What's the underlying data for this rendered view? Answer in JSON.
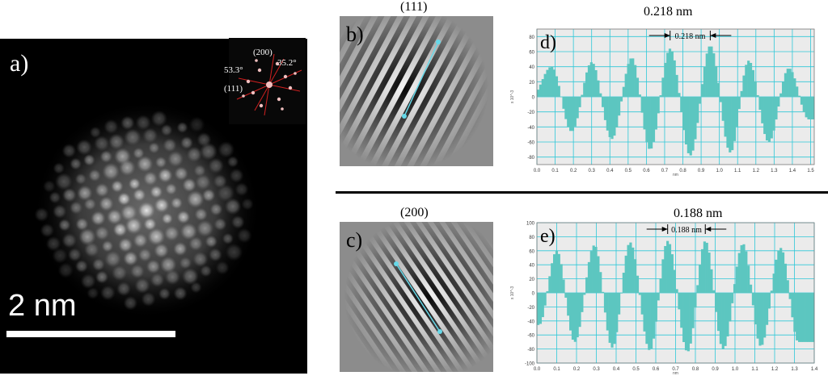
{
  "panel_a": {
    "letter": "a)",
    "scale_bar_label": "2 nm",
    "fft_inset": {
      "label_200": "(200)",
      "label_111": "(111)",
      "angle_left": "53.3°",
      "angle_right": "35.2°"
    }
  },
  "panel_b": {
    "letter": "b)",
    "header": "(111)"
  },
  "panel_c": {
    "letter": "c)",
    "header": "(200)"
  },
  "panel_d": {
    "letter": "d)",
    "header": "0.218 nm",
    "marker_label": "0.218 nm"
  },
  "panel_e": {
    "letter": "e)",
    "header": "0.188 nm",
    "marker_label": "0.188 nm"
  },
  "colors": {
    "profile_fill": "#5cc6c0",
    "grid": "#2ec8d8",
    "plot_bg": "#ebebeb",
    "line_overlay": "#66d8e8"
  },
  "chart_data": [
    {
      "type": "bar",
      "name": "panel-d-line-profile",
      "xlabel": "nm",
      "ylabel": "x 10^-3",
      "ylim": [
        -90,
        90
      ],
      "xlim": [
        0.0,
        1.52
      ],
      "yticks": [
        -80,
        -60,
        -40,
        -20,
        0,
        20,
        40,
        60,
        80
      ],
      "xticks": [
        "0.0",
        "0.1",
        "0.2",
        "0.3",
        "0.4",
        "0.5",
        "0.6",
        "0.7",
        "0.8",
        "0.9",
        "1.0",
        "1.1",
        "1.2",
        "1.3",
        "1.4",
        "1.5"
      ],
      "period": 0.218,
      "peaks": [
        {
          "x": 0.08,
          "y": 40
        },
        {
          "x": 0.3,
          "y": 46
        },
        {
          "x": 0.52,
          "y": 52
        },
        {
          "x": 0.73,
          "y": 64
        },
        {
          "x": 0.95,
          "y": 68
        },
        {
          "x": 1.16,
          "y": 48
        },
        {
          "x": 1.38,
          "y": 38
        }
      ],
      "troughs": [
        {
          "x": 0.19,
          "y": -46
        },
        {
          "x": 0.41,
          "y": -56
        },
        {
          "x": 0.62,
          "y": -70
        },
        {
          "x": 0.84,
          "y": -78
        },
        {
          "x": 1.06,
          "y": -74
        },
        {
          "x": 1.27,
          "y": -60
        },
        {
          "x": 1.49,
          "y": -30
        }
      ]
    },
    {
      "type": "bar",
      "name": "panel-e-line-profile",
      "xlabel": "nm",
      "ylabel": "x 10^-3",
      "ylim": [
        -100,
        100
      ],
      "xlim": [
        0.0,
        1.4
      ],
      "yticks": [
        -100,
        -80,
        -60,
        -40,
        -20,
        0,
        20,
        40,
        60,
        80,
        100
      ],
      "xticks": [
        "0.0",
        "0.1",
        "0.2",
        "0.3",
        "0.4",
        "0.5",
        "0.6",
        "0.7",
        "0.8",
        "0.9",
        "1.0",
        "1.1",
        "1.2",
        "1.3",
        "1.4"
      ],
      "period": 0.188,
      "peaks": [
        {
          "x": 0.1,
          "y": 60
        },
        {
          "x": 0.29,
          "y": 68
        },
        {
          "x": 0.47,
          "y": 72
        },
        {
          "x": 0.66,
          "y": 74
        },
        {
          "x": 0.85,
          "y": 74
        },
        {
          "x": 1.04,
          "y": 70
        },
        {
          "x": 1.23,
          "y": 64
        }
      ],
      "troughs": [
        {
          "x": 0.01,
          "y": -46
        },
        {
          "x": 0.19,
          "y": -70
        },
        {
          "x": 0.38,
          "y": -78
        },
        {
          "x": 0.57,
          "y": -82
        },
        {
          "x": 0.76,
          "y": -84
        },
        {
          "x": 0.94,
          "y": -80
        },
        {
          "x": 1.13,
          "y": -76
        },
        {
          "x": 1.32,
          "y": -70
        }
      ]
    }
  ]
}
